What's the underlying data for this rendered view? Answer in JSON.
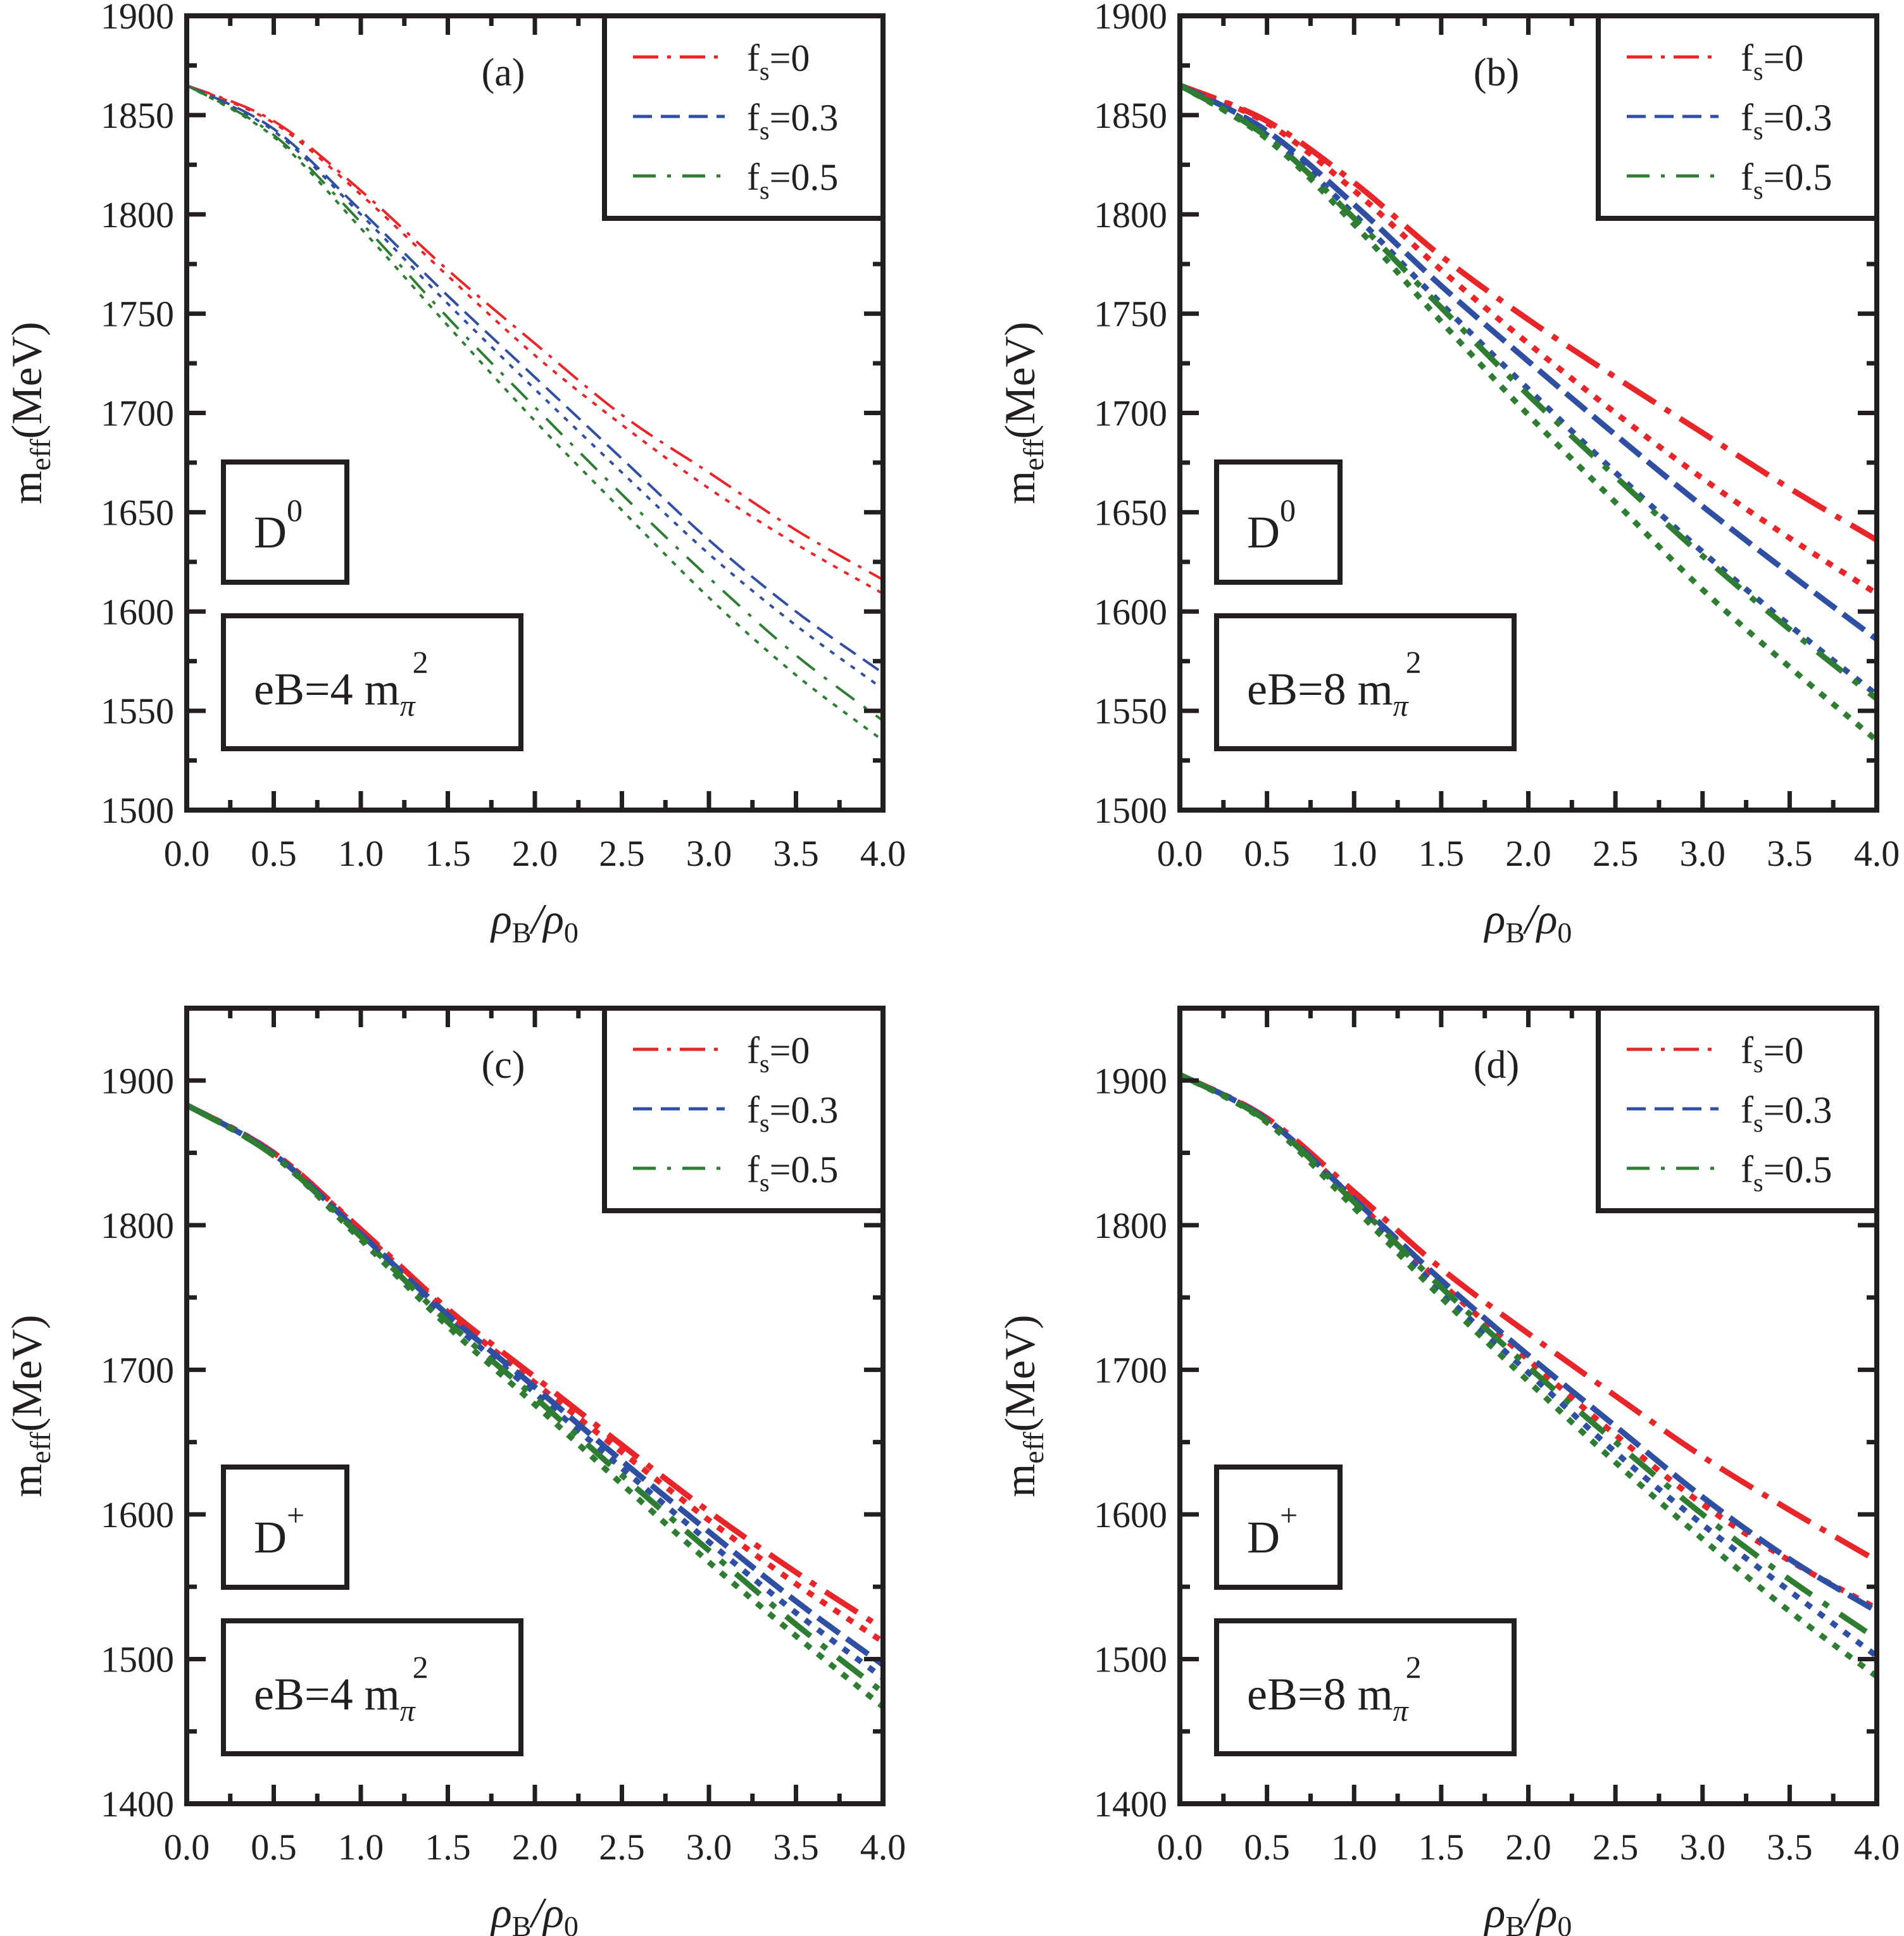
{
  "figure": {
    "xlabel_main": "ρ",
    "xlabel_sub1": "B",
    "xlabel_slash": "/ρ",
    "xlabel_sub2": "0",
    "ylabel_main": "m",
    "ylabel_sub": "eff",
    "ylabel_unit": "(MeV)"
  },
  "styles": {
    "colors": {
      "fs0": "#e8262a",
      "fs03": "#2f4fa3",
      "fs05": "#2e7d32"
    },
    "legend": [
      {
        "key": "fs0",
        "label_main": "f",
        "label_sub": "s",
        "label_tail": "=0",
        "dash": "dashdot"
      },
      {
        "key": "fs03",
        "label_main": "f",
        "label_sub": "s",
        "label_tail": "=0.3",
        "dash": "dash"
      },
      {
        "key": "fs05",
        "label_main": "f",
        "label_sub": "s",
        "label_tail": "=0.5",
        "dash": "dashdot2"
      }
    ]
  },
  "chart_data": [
    {
      "type": "line",
      "panel": "(a)",
      "particle_main": "D",
      "particle_sup": "0",
      "field_main": "eB=4 m",
      "field_sub": "π",
      "field_sup": "2",
      "xlabel": "ρB/ρ0",
      "ylabel": "meff(MeV)",
      "xlim": [
        0,
        4
      ],
      "ylim": [
        1500,
        1900
      ],
      "xticks": [
        "0.0",
        "0.5",
        "1.0",
        "1.5",
        "2.0",
        "2.5",
        "3.0",
        "3.5",
        "4.0"
      ],
      "yticks": [
        1500,
        1550,
        1600,
        1650,
        1700,
        1750,
        1800,
        1850,
        1900
      ],
      "legend_position": "top-right",
      "x": [
        0,
        0.5,
        1.0,
        1.5,
        2.0,
        2.5,
        3.0,
        3.5,
        4.0
      ],
      "series": [
        {
          "name": "fs=0 (dash-dot)",
          "color_key": "fs0",
          "style": "dashdot",
          "values": [
            1865,
            1847,
            1812,
            1772,
            1735,
            1699,
            1670,
            1641,
            1616
          ]
        },
        {
          "name": "fs=0 (dotted)",
          "color_key": "fs0",
          "style": "dot",
          "values": [
            1865,
            1846,
            1810,
            1769,
            1729,
            1694,
            1662,
            1634,
            1609
          ]
        },
        {
          "name": "fs=0.3 (dashed)",
          "color_key": "fs03",
          "style": "dash",
          "values": [
            1865,
            1843,
            1802,
            1759,
            1718,
            1677,
            1636,
            1600,
            1569
          ]
        },
        {
          "name": "fs=0.3 (dotted)",
          "color_key": "fs03",
          "style": "dot",
          "values": [
            1865,
            1842,
            1800,
            1755,
            1712,
            1670,
            1629,
            1593,
            1561
          ]
        },
        {
          "name": "fs=0.5 (dash-dot)",
          "color_key": "fs05",
          "style": "dashdot2",
          "values": [
            1865,
            1840,
            1796,
            1748,
            1703,
            1659,
            1617,
            1578,
            1545
          ]
        },
        {
          "name": "fs=0.5 (dotted)",
          "color_key": "fs05",
          "style": "dot",
          "values": [
            1865,
            1839,
            1793,
            1744,
            1696,
            1651,
            1607,
            1568,
            1535
          ]
        }
      ]
    },
    {
      "type": "line",
      "panel": "(b)",
      "particle_main": "D",
      "particle_sup": "0",
      "field_main": "eB=8 m",
      "field_sub": "π",
      "field_sup": "2",
      "xlabel": "ρB/ρ0",
      "ylabel": "meff(MeV)",
      "xlim": [
        0,
        4
      ],
      "ylim": [
        1500,
        1900
      ],
      "xticks": [
        "0.0",
        "0.5",
        "1.0",
        "1.5",
        "2.0",
        "2.5",
        "3.0",
        "3.5",
        "4.0"
      ],
      "yticks": [
        1500,
        1550,
        1600,
        1650,
        1700,
        1750,
        1800,
        1850,
        1900
      ],
      "legend_position": "top-right",
      "x": [
        0,
        0.5,
        1.0,
        1.5,
        2.0,
        2.5,
        3.0,
        3.5,
        4.0
      ],
      "series": [
        {
          "name": "fs=0 (dash-dot)",
          "color_key": "fs0",
          "style": "dashdot",
          "values": [
            1865,
            1847,
            1816,
            1779,
            1747,
            1718,
            1690,
            1662,
            1636
          ]
        },
        {
          "name": "fs=0 (dotted)",
          "color_key": "fs0",
          "style": "dot",
          "values": [
            1865,
            1846,
            1812,
            1772,
            1735,
            1700,
            1667,
            1637,
            1609
          ]
        },
        {
          "name": "fs=0.3 (dashed)",
          "color_key": "fs03",
          "style": "dash",
          "values": [
            1865,
            1842,
            1805,
            1764,
            1726,
            1689,
            1653,
            1619,
            1586
          ]
        },
        {
          "name": "fs=0.3 (dotted)",
          "color_key": "fs03",
          "style": "dot",
          "values": [
            1865,
            1840,
            1800,
            1755,
            1712,
            1670,
            1630,
            1593,
            1558
          ]
        },
        {
          "name": "fs=0.5 (dash-dot)",
          "color_key": "fs05",
          "style": "dashdot2",
          "values": [
            1865,
            1839,
            1798,
            1753,
            1709,
            1668,
            1628,
            1591,
            1556
          ]
        },
        {
          "name": "fs=0.5 (dotted)",
          "color_key": "fs05",
          "style": "dot",
          "values": [
            1865,
            1838,
            1795,
            1746,
            1699,
            1655,
            1611,
            1572,
            1535
          ]
        }
      ]
    },
    {
      "type": "line",
      "panel": "(c)",
      "particle_main": "D",
      "particle_sup": "+",
      "field_main": "eB=4 m",
      "field_sub": "π",
      "field_sup": "2",
      "xlabel": "ρB/ρ0",
      "ylabel": "meff(MeV)",
      "xlim": [
        0,
        4
      ],
      "ylim": [
        1400,
        1950
      ],
      "xticks": [
        "0.0",
        "0.5",
        "1.0",
        "1.5",
        "2.0",
        "2.5",
        "3.0",
        "3.5",
        "4.0"
      ],
      "yticks": [
        1400,
        1500,
        1600,
        1700,
        1800,
        1900
      ],
      "legend_position": "top-right",
      "x": [
        0,
        0.5,
        1.0,
        1.5,
        2.0,
        2.5,
        3.0,
        3.5,
        4.0
      ],
      "series": [
        {
          "name": "fs=0 (dash-dot)",
          "color_key": "fs0",
          "style": "dashdot",
          "values": [
            1883,
            1850,
            1797,
            1742,
            1695,
            1648,
            1602,
            1560,
            1521
          ]
        },
        {
          "name": "fs=0 (dotted)",
          "color_key": "fs0",
          "style": "dot",
          "values": [
            1883,
            1850,
            1796,
            1740,
            1691,
            1643,
            1596,
            1552,
            1512
          ]
        },
        {
          "name": "fs=0.3 (dashed)",
          "color_key": "fs03",
          "style": "dash",
          "values": [
            1883,
            1849,
            1794,
            1738,
            1688,
            1637,
            1588,
            1540,
            1496
          ]
        },
        {
          "name": "fs=0.3 (dotted)",
          "color_key": "fs03",
          "style": "dot",
          "values": [
            1883,
            1849,
            1793,
            1735,
            1684,
            1632,
            1581,
            1532,
            1487
          ]
        },
        {
          "name": "fs=0.5 (dash-dot)",
          "color_key": "fs05",
          "style": "dashdot2",
          "values": [
            1883,
            1848,
            1792,
            1733,
            1681,
            1627,
            1575,
            1524,
            1477
          ]
        },
        {
          "name": "fs=0.5 (dotted)",
          "color_key": "fs05",
          "style": "dot",
          "values": [
            1883,
            1848,
            1790,
            1730,
            1676,
            1621,
            1567,
            1516,
            1467
          ]
        }
      ]
    },
    {
      "type": "line",
      "panel": "(d)",
      "particle_main": "D",
      "particle_sup": "+",
      "field_main": "eB=8 m",
      "field_sub": "π",
      "field_sup": "2",
      "xlabel": "ρB/ρ0",
      "ylabel": "meff(MeV)",
      "xlim": [
        0,
        4
      ],
      "ylim": [
        1400,
        1950
      ],
      "xticks": [
        "0.0",
        "0.5",
        "1.0",
        "1.5",
        "2.0",
        "2.5",
        "3.0",
        "3.5",
        "4.0"
      ],
      "yticks": [
        1400,
        1500,
        1600,
        1700,
        1800,
        1900
      ],
      "legend_position": "top-right",
      "x": [
        0,
        0.5,
        1.0,
        1.5,
        2.0,
        2.5,
        3.0,
        3.5,
        4.0
      ],
      "series": [
        {
          "name": "fs=0 (dash-dot)",
          "color_key": "fs0",
          "style": "dashdot",
          "values": [
            1904,
            1874,
            1823,
            1770,
            1725,
            1682,
            1640,
            1603,
            1568
          ]
        },
        {
          "name": "fs=0 (dotted)",
          "color_key": "fs0",
          "style": "dot",
          "values": [
            1904,
            1873,
            1818,
            1760,
            1707,
            1655,
            1607,
            1568,
            1535
          ]
        },
        {
          "name": "fs=0.3 (dashed)",
          "color_key": "fs03",
          "style": "dash",
          "values": [
            1904,
            1873,
            1818,
            1762,
            1710,
            1661,
            1612,
            1569,
            1533
          ]
        },
        {
          "name": "fs=0.3 (dotted)",
          "color_key": "fs03",
          "style": "dot",
          "values": [
            1904,
            1872,
            1815,
            1754,
            1698,
            1643,
            1593,
            1547,
            1502
          ]
        },
        {
          "name": "fs=0.5 (dash-dot)",
          "color_key": "fs05",
          "style": "dashdot2",
          "values": [
            1904,
            1872,
            1816,
            1757,
            1702,
            1650,
            1600,
            1555,
            1514
          ]
        },
        {
          "name": "fs=0.5 (dotted)",
          "color_key": "fs05",
          "style": "dot",
          "values": [
            1904,
            1871,
            1812,
            1750,
            1692,
            1636,
            1583,
            1533,
            1488
          ]
        }
      ]
    }
  ]
}
